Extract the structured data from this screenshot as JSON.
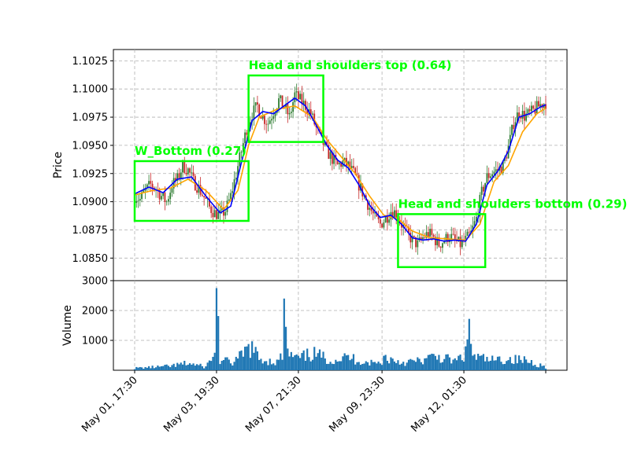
{
  "chart_data": [
    {
      "type": "candlestick",
      "ylabel": "Price",
      "ylim": [
        1.083,
        1.1035
      ],
      "yticks": [
        "1.0850",
        "1.0875",
        "1.0900",
        "1.0925",
        "1.0950",
        "1.0975",
        "1.1000",
        "1.1025"
      ],
      "ytick_values": [
        1.085,
        1.0875,
        1.09,
        1.0925,
        1.095,
        1.0975,
        1.1,
        1.1025
      ],
      "grid": true,
      "colors": {
        "up": "#2e7d32",
        "down": "#c62828",
        "ma_fast": "#0000ff",
        "ma_slow": "#ffa500",
        "pattern_box": "#00ff00"
      },
      "series": [
        {
          "kind": "close_path",
          "points": [
            [
              0,
              1.0905
            ],
            [
              3,
              1.0902
            ],
            [
              6,
              1.091
            ],
            [
              9,
              1.0915
            ],
            [
              12,
              1.0912
            ],
            [
              15,
              1.0905
            ],
            [
              18,
              1.09
            ],
            [
              21,
              1.0915
            ],
            [
              24,
              1.092
            ],
            [
              27,
              1.0932
            ],
            [
              30,
              1.0928
            ],
            [
              33,
              1.0918
            ],
            [
              36,
              1.0912
            ],
            [
              39,
              1.0904
            ],
            [
              42,
              1.0895
            ],
            [
              45,
              1.089
            ],
            [
              48,
              1.0888
            ],
            [
              51,
              1.0892
            ],
            [
              54,
              1.0905
            ],
            [
              57,
              1.0925
            ],
            [
              60,
              1.0945
            ],
            [
              63,
              1.0965
            ],
            [
              66,
              1.0978
            ],
            [
              69,
              1.0985
            ],
            [
              72,
              1.0975
            ],
            [
              75,
              1.097
            ],
            [
              78,
              1.098
            ],
            [
              81,
              1.099
            ],
            [
              84,
              1.0985
            ],
            [
              87,
              1.0975
            ],
            [
              90,
              1.0995
            ],
            [
              93,
              1.099
            ],
            [
              96,
              1.0985
            ],
            [
              99,
              1.0978
            ],
            [
              102,
              1.0965
            ],
            [
              105,
              1.0955
            ],
            [
              108,
              1.0945
            ],
            [
              111,
              1.0938
            ],
            [
              114,
              1.0932
            ],
            [
              117,
              1.0935
            ],
            [
              120,
              1.0932
            ],
            [
              123,
              1.0925
            ],
            [
              126,
              1.0915
            ],
            [
              129,
              1.0905
            ],
            [
              132,
              1.0895
            ],
            [
              135,
              1.0885
            ],
            [
              138,
              1.088
            ],
            [
              141,
              1.0885
            ],
            [
              144,
              1.0892
            ],
            [
              147,
              1.089
            ],
            [
              150,
              1.088
            ],
            [
              153,
              1.0872
            ],
            [
              156,
              1.0866
            ],
            [
              159,
              1.0862
            ],
            [
              162,
              1.0868
            ],
            [
              165,
              1.0872
            ],
            [
              168,
              1.0868
            ],
            [
              171,
              1.0862
            ],
            [
              174,
              1.0866
            ],
            [
              177,
              1.087
            ],
            [
              180,
              1.0865
            ],
            [
              183,
              1.0862
            ],
            [
              186,
              1.0866
            ],
            [
              189,
              1.0872
            ],
            [
              192,
              1.0885
            ],
            [
              195,
              1.0908
            ],
            [
              198,
              1.0922
            ],
            [
              201,
              1.0926
            ],
            [
              204,
              1.0928
            ],
            [
              207,
              1.0932
            ],
            [
              210,
              1.0948
            ],
            [
              213,
              1.097
            ],
            [
              216,
              1.098
            ],
            [
              219,
              1.0976
            ],
            [
              222,
              1.0978
            ],
            [
              225,
              1.0982
            ],
            [
              228,
              1.0986
            ],
            [
              231,
              1.0988
            ]
          ]
        }
      ],
      "ma_fast_points": [
        [
          0,
          1.0907
        ],
        [
          8,
          1.0913
        ],
        [
          16,
          1.0908
        ],
        [
          24,
          1.092
        ],
        [
          32,
          1.0922
        ],
        [
          40,
          1.0905
        ],
        [
          48,
          1.089
        ],
        [
          54,
          1.0896
        ],
        [
          60,
          1.0935
        ],
        [
          66,
          1.0972
        ],
        [
          72,
          1.098
        ],
        [
          78,
          1.0978
        ],
        [
          84,
          1.0985
        ],
        [
          90,
          1.0992
        ],
        [
          96,
          1.0985
        ],
        [
          102,
          1.0968
        ],
        [
          108,
          1.095
        ],
        [
          114,
          1.0937
        ],
        [
          120,
          1.093
        ],
        [
          126,
          1.0915
        ],
        [
          132,
          1.0897
        ],
        [
          138,
          1.0886
        ],
        [
          144,
          1.0888
        ],
        [
          150,
          1.088
        ],
        [
          156,
          1.0868
        ],
        [
          162,
          1.0866
        ],
        [
          168,
          1.0867
        ],
        [
          174,
          1.0865
        ],
        [
          180,
          1.0866
        ],
        [
          186,
          1.0865
        ],
        [
          192,
          1.088
        ],
        [
          198,
          1.0915
        ],
        [
          204,
          1.0927
        ],
        [
          210,
          1.0945
        ],
        [
          216,
          1.0975
        ],
        [
          222,
          1.0978
        ],
        [
          228,
          1.0984
        ],
        [
          231,
          1.0986
        ]
      ],
      "ma_slow_points": [
        [
          0,
          1.0906
        ],
        [
          10,
          1.091
        ],
        [
          20,
          1.0912
        ],
        [
          30,
          1.092
        ],
        [
          40,
          1.091
        ],
        [
          50,
          1.0893
        ],
        [
          58,
          1.091
        ],
        [
          64,
          1.095
        ],
        [
          70,
          1.0975
        ],
        [
          80,
          1.0982
        ],
        [
          90,
          1.0985
        ],
        [
          100,
          1.0975
        ],
        [
          108,
          1.0955
        ],
        [
          116,
          1.094
        ],
        [
          124,
          1.0925
        ],
        [
          132,
          1.0905
        ],
        [
          140,
          1.0888
        ],
        [
          148,
          1.0885
        ],
        [
          156,
          1.0874
        ],
        [
          166,
          1.0868
        ],
        [
          176,
          1.0867
        ],
        [
          186,
          1.0866
        ],
        [
          194,
          1.088
        ],
        [
          202,
          1.0918
        ],
        [
          210,
          1.0932
        ],
        [
          218,
          1.0962
        ],
        [
          226,
          1.0978
        ],
        [
          231,
          1.0983
        ]
      ],
      "annotations": [
        {
          "label": "W_Bottom (0.27)",
          "x0": 0,
          "x1": 64,
          "y0": 1.0883,
          "y1": 1.0936
        },
        {
          "label": "Head and shoulders top (0.64)",
          "x0": 64,
          "x1": 106,
          "y0": 1.0953,
          "y1": 1.1012
        },
        {
          "label": "Head and shoulders bottom (0.29)",
          "x0": 148,
          "x1": 197,
          "y0": 1.0842,
          "y1": 1.0889
        }
      ]
    },
    {
      "type": "bar",
      "ylabel": "Volume",
      "ylim": [
        0,
        3000
      ],
      "yticks": [
        "1000",
        "2000",
        "3000"
      ],
      "ytick_values": [
        1000,
        2000,
        3000
      ],
      "grid": true,
      "color": "#1f77b4",
      "x_categories": [
        "May 01, 17:30",
        "May 03, 19:30",
        "May 07, 21:30",
        "May 09, 23:30",
        "May 12, 01:30"
      ],
      "x_category_index": [
        0,
        46,
        92,
        139,
        185
      ],
      "volume_profile": [
        [
          0,
          80
        ],
        [
          20,
          150
        ],
        [
          30,
          260
        ],
        [
          40,
          120
        ],
        [
          45,
          650
        ],
        [
          46,
          2750
        ],
        [
          48,
          380
        ],
        [
          55,
          280
        ],
        [
          60,
          520
        ],
        [
          65,
          900
        ],
        [
          70,
          420
        ],
        [
          80,
          300
        ],
        [
          83,
          520
        ],
        [
          84,
          2400
        ],
        [
          86,
          600
        ],
        [
          92,
          420
        ],
        [
          100,
          620
        ],
        [
          110,
          380
        ],
        [
          120,
          480
        ],
        [
          130,
          300
        ],
        [
          138,
          260
        ],
        [
          140,
          480
        ],
        [
          150,
          300
        ],
        [
          160,
          340
        ],
        [
          170,
          520
        ],
        [
          180,
          330
        ],
        [
          186,
          600
        ],
        [
          188,
          1720
        ],
        [
          190,
          520
        ],
        [
          200,
          360
        ],
        [
          210,
          420
        ],
        [
          220,
          360
        ],
        [
          225,
          260
        ],
        [
          231,
          120
        ]
      ]
    }
  ]
}
